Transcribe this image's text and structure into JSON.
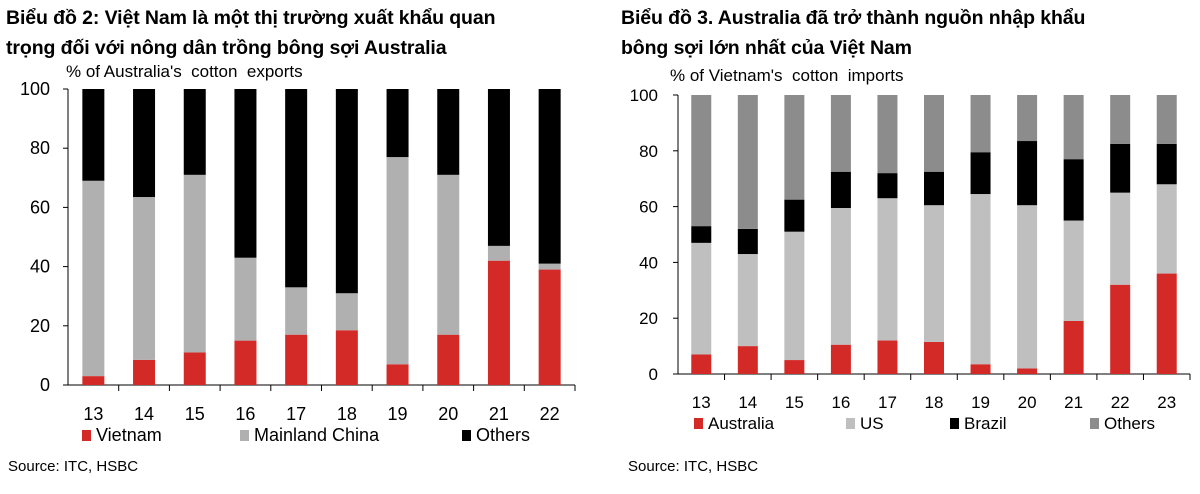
{
  "chart_data": [
    {
      "type": "bar",
      "stacked": true,
      "title_lines": [
        "Biểu đồ 2: Việt Nam là một thị trường xuất khẩu quan",
        "trọng đối với nông dân trồng bông sợi Australia"
      ],
      "ylabel": "% of Australia's  cotton  exports",
      "xlabel": "",
      "ylim": [
        0,
        100
      ],
      "yticks": [
        "0",
        "20",
        "40",
        "60",
        "80",
        "100"
      ],
      "categories": [
        "13",
        "14",
        "15",
        "16",
        "17",
        "18",
        "19",
        "20",
        "21",
        "22"
      ],
      "series": [
        {
          "name": "Vietnam",
          "color": "#d42a27",
          "values": [
            3,
            8.5,
            11,
            15,
            17,
            18.5,
            7,
            17,
            42,
            39
          ]
        },
        {
          "name": "Mainland China",
          "color": "#b0b0b0",
          "values": [
            66,
            55,
            60,
            28,
            16,
            12.5,
            70,
            54,
            5,
            2
          ]
        },
        {
          "name": "Others",
          "color": "#000000",
          "values": [
            31,
            36.5,
            29,
            57,
            67,
            69,
            23,
            29,
            53,
            59
          ]
        }
      ],
      "legend": "bottom",
      "source": "Source: ITC, HSBC"
    },
    {
      "type": "bar",
      "stacked": true,
      "title_lines": [
        "Biểu đồ 3. Australia đã trở thành nguồn nhập khẩu",
        "bông sợi lớn nhất của Việt Nam"
      ],
      "ylabel": "% of Vietnam's  cotton  imports",
      "xlabel": "",
      "ylim": [
        0,
        100
      ],
      "yticks": [
        "0",
        "20",
        "40",
        "60",
        "80",
        "100"
      ],
      "categories": [
        "13",
        "14",
        "15",
        "16",
        "17",
        "18",
        "19",
        "20",
        "21",
        "22",
        "23"
      ],
      "series": [
        {
          "name": "Australia",
          "color": "#d42a27",
          "values": [
            7,
            10,
            5,
            10.5,
            12,
            11.5,
            3.5,
            2,
            19,
            32,
            36
          ]
        },
        {
          "name": "US",
          "color": "#bfbfbf",
          "values": [
            40,
            33,
            46,
            49,
            51,
            49,
            61,
            58.5,
            36,
            33,
            32
          ]
        },
        {
          "name": "Brazil",
          "color": "#000000",
          "values": [
            6,
            9,
            11.5,
            13,
            9,
            12,
            15,
            23,
            22,
            17.5,
            14.5
          ]
        },
        {
          "name": "Others",
          "color": "#8c8c8c",
          "values": [
            47,
            48,
            37.5,
            27.5,
            28,
            27.5,
            20.5,
            16.5,
            23,
            17.5,
            17.5
          ]
        }
      ],
      "legend": "bottom",
      "source": "Source: ITC, HSBC"
    }
  ]
}
